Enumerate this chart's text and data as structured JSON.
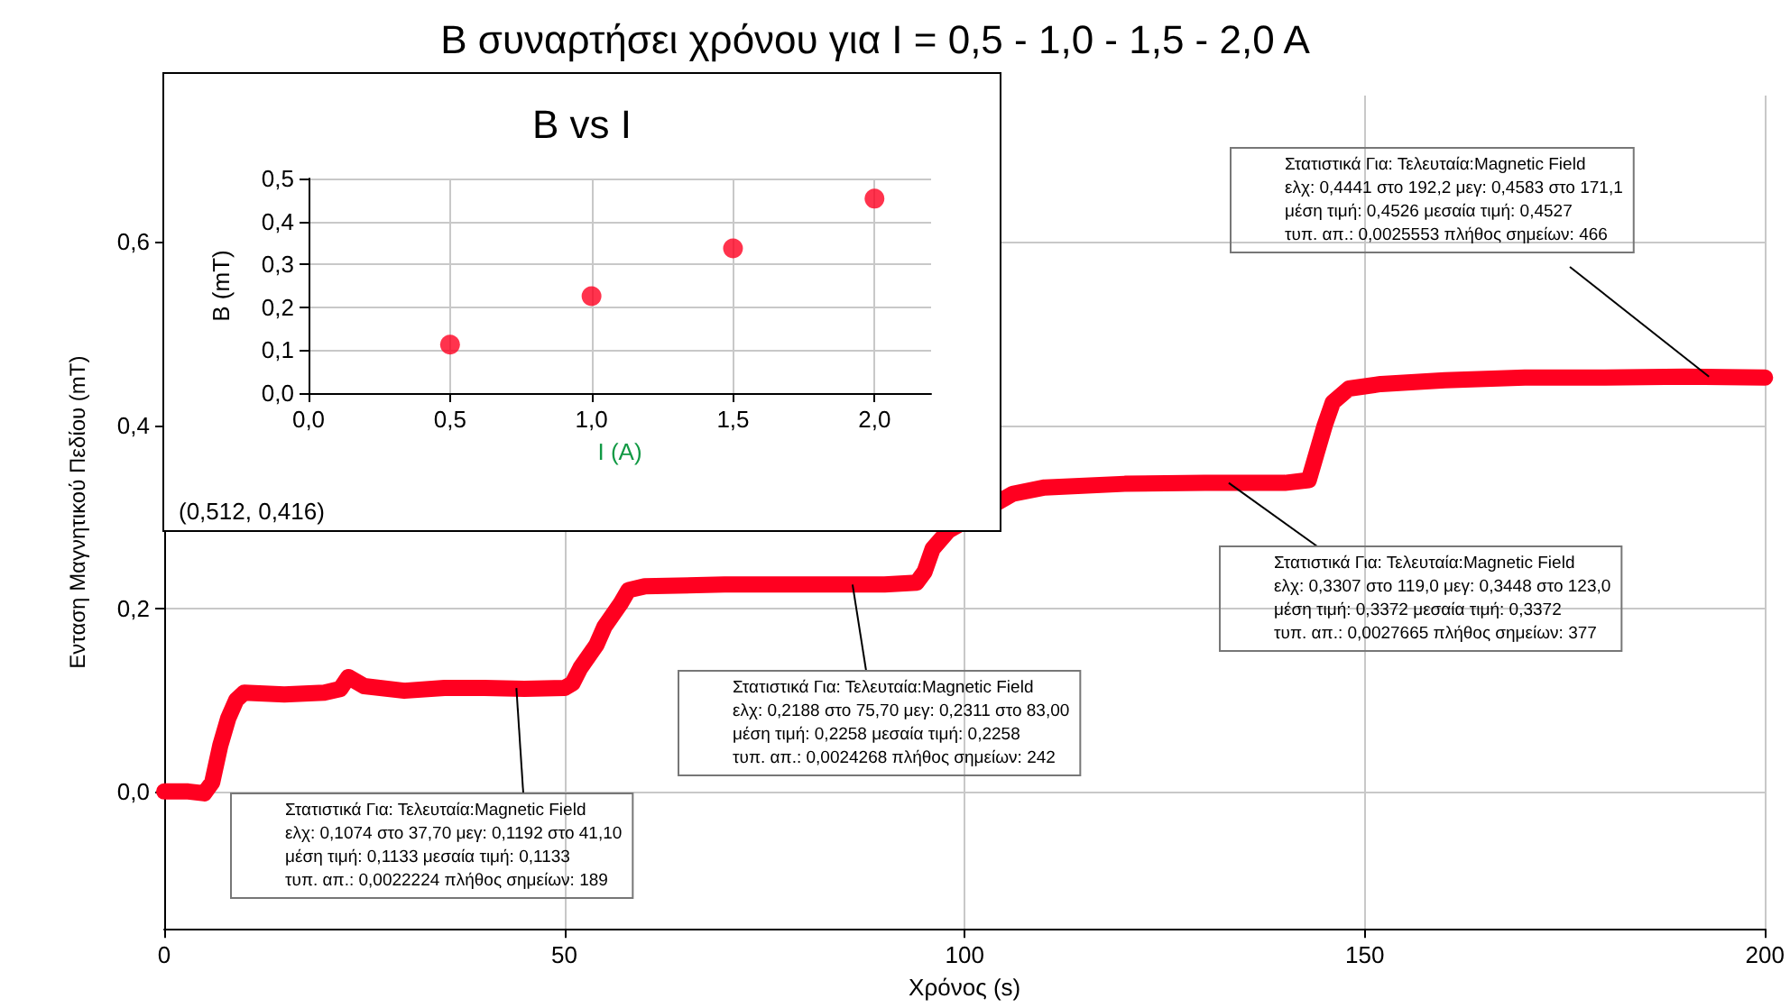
{
  "chart_data": [
    {
      "type": "line",
      "title": "B συναρτήσει χρόνου για I = 0,5 - 1,0 - 1,5 - 2,0 A",
      "xlabel": "Χρόνος (s)",
      "ylabel": "Ενταση Μαγνητικού Πεδίου (mT)",
      "x": [
        0,
        3,
        5,
        6,
        7,
        8,
        9,
        10,
        15,
        20,
        22,
        23,
        25,
        30,
        35,
        40,
        45,
        50,
        51,
        52,
        54,
        55,
        57,
        58,
        60,
        70,
        80,
        90,
        94,
        95,
        96,
        98,
        106,
        110,
        120,
        130,
        140,
        143,
        144,
        145,
        146,
        148,
        152,
        160,
        170,
        180,
        190,
        200
      ],
      "series": [
        {
          "color": "#ff0020",
          "values": [
            0,
            0,
            -0.002,
            0.01,
            0.05,
            0.08,
            0.1,
            0.108,
            0.106,
            0.108,
            0.112,
            0.125,
            0.115,
            0.11,
            0.113,
            0.113,
            0.112,
            0.113,
            0.118,
            0.135,
            0.16,
            0.18,
            0.205,
            0.22,
            0.224,
            0.226,
            0.226,
            0.226,
            0.228,
            0.24,
            0.265,
            0.285,
            0.325,
            0.332,
            0.336,
            0.337,
            0.337,
            0.34,
            0.37,
            0.4,
            0.425,
            0.44,
            0.445,
            0.449,
            0.452,
            0.452,
            0.453,
            0.452
          ]
        }
      ],
      "xlim": [
        0,
        200
      ],
      "xticks": [
        0,
        50,
        100,
        150,
        200
      ],
      "ylim": [
        -0.15,
        0.76
      ],
      "yticks": [
        {
          "value": 0,
          "label": "0,0"
        },
        {
          "value": 0.2,
          "label": "0,2"
        },
        {
          "value": 0.4,
          "label": "0,4"
        },
        {
          "value": 0.6,
          "label": "0,6"
        }
      ],
      "grid": true,
      "marker": "none",
      "annotations": [
        {
          "text": "Στατιστικά Για: Τελευταία:Magnetic Field\nελχ: 0,1074 στο 37,70 μεγ: 0,1192 στο 41,10\nμέση τιμή: 0,1133 μεσαία τιμή: 0,1133\nτυπ. απ.: 0,0022224 πλήθος σημείων: 189",
          "x": 44,
          "y": 0.113
        },
        {
          "text": "Στατιστικά Για: Τελευταία:Magnetic Field\nελχ: 0,2188 στο 75,70 μεγ: 0,2311 στο 83,00\nμέση τιμή: 0,2258 μεσαία τιμή: 0,2258\nτυπ. απ.: 0,0024268 πλήθος σημείων: 242",
          "x": 86,
          "y": 0.226
        },
        {
          "text": "Στατιστικά Για: Τελευταία:Magnetic Field\nελχ: 0,3307 στο 119,0 μεγ: 0,3448 στο 123,0\nμέση τιμή: 0,3372 μεσαία τιμή: 0,3372\nτυπ. απ.: 0,0027665 πλήθος σημείων: 377",
          "x": 133,
          "y": 0.337
        },
        {
          "text": "Στατιστικά Για: Τελευταία:Magnetic Field\nελχ: 0,4441 στο 192,2 μεγ: 0,4583 στο 171,1\nμέση τιμή: 0,4526 μεσαία τιμή: 0,4527\nτυπ. απ.: 0,0025553 πλήθος σημείων: 466",
          "x": 193,
          "y": 0.453
        }
      ]
    },
    {
      "type": "scatter",
      "title": "B vs I",
      "xlabel": "I (A)",
      "ylabel": "B (mT)",
      "x": [
        0.5,
        1,
        1.5,
        2
      ],
      "series": [
        {
          "color": "#ff0020",
          "values": [
            0.113,
            0.226,
            0.337,
            0.453
          ]
        }
      ],
      "xlim": [
        0,
        2.2
      ],
      "xticks": [
        {
          "value": 0,
          "label": "0,0"
        },
        {
          "value": 0.5,
          "label": "0,5"
        },
        {
          "value": 1,
          "label": "1,0"
        },
        {
          "value": 1.5,
          "label": "1,5"
        },
        {
          "value": 2,
          "label": "2,0"
        }
      ],
      "ylim": [
        0,
        0.5
      ],
      "yticks": [
        {
          "value": 0,
          "label": "0,0"
        },
        {
          "value": 0.1,
          "label": "0,1"
        },
        {
          "value": 0.2,
          "label": "0,2"
        },
        {
          "value": 0.3,
          "label": "0,3"
        },
        {
          "value": 0.4,
          "label": "0,4"
        },
        {
          "value": 0.5,
          "label": "0,5"
        }
      ],
      "grid": true,
      "marker": "circle",
      "annotations": [
        "(0,512, 0,416)"
      ]
    }
  ]
}
